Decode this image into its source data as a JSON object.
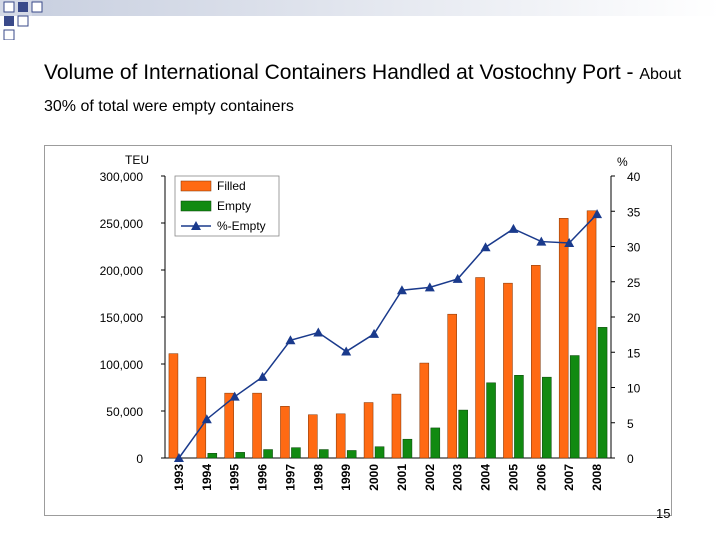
{
  "slide": {
    "title_main": "Volume of International Containers Handled at Vostochny Port - ",
    "title_sub": "About 30% of total were empty containers",
    "page_number": "15"
  },
  "chart_data": {
    "type": "bar",
    "categories": [
      "1993",
      "1994",
      "1995",
      "1996",
      "1997",
      "1998",
      "1999",
      "2000",
      "2001",
      "2002",
      "2003",
      "2004",
      "2005",
      "2006",
      "2007",
      "2008"
    ],
    "series": [
      {
        "name": "Filled",
        "type": "bar",
        "axis": "left",
        "color": "#ff6a13",
        "values": [
          111000,
          86000,
          69000,
          69000,
          55000,
          46000,
          47000,
          59000,
          68000,
          101000,
          153000,
          192000,
          186000,
          205000,
          255000,
          263000
        ]
      },
      {
        "name": "Empty",
        "type": "bar",
        "axis": "left",
        "color": "#118a11",
        "values": [
          0,
          5000,
          6000,
          9000,
          11000,
          9000,
          8000,
          12000,
          20000,
          32000,
          51000,
          80000,
          88000,
          86000,
          109000,
          139000
        ]
      },
      {
        "name": "%-Empty",
        "type": "line",
        "axis": "right",
        "color": "#1a3a8c",
        "marker": "triangle",
        "values": [
          0,
          5.5,
          8.7,
          11.5,
          16.7,
          17.8,
          15.1,
          17.6,
          23.8,
          24.2,
          25.4,
          29.9,
          32.5,
          30.7,
          30.5,
          34.6
        ]
      }
    ],
    "ylabel": "TEU",
    "y2label": "%",
    "ylim": [
      0,
      300000
    ],
    "y2lim": [
      0,
      40
    ],
    "y_ticks": [
      "0",
      "50,000",
      "100,000",
      "150,000",
      "200,000",
      "250,000",
      "300,000"
    ],
    "y2_ticks": [
      "0",
      "5",
      "10",
      "15",
      "20",
      "25",
      "30",
      "35",
      "40"
    ],
    "grid": false,
    "legend_position": "top-left"
  }
}
